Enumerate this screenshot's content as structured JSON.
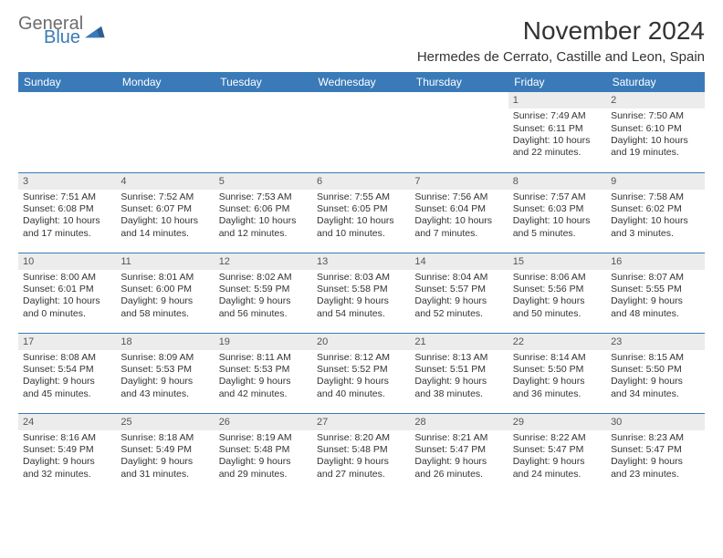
{
  "brand": {
    "general": "General",
    "blue": "Blue",
    "logo_color": "#3a7ab8"
  },
  "title": "November 2024",
  "location": "Hermedes de Cerrato, Castille and Leon, Spain",
  "header_bg": "#3a7ab8",
  "header_text": "#ffffff",
  "daynum_bg": "#ececec",
  "border_color": "#3a7ab8",
  "text_color": "#333333",
  "font_size_day": 10.5,
  "days": [
    "Sunday",
    "Monday",
    "Tuesday",
    "Wednesday",
    "Thursday",
    "Friday",
    "Saturday"
  ],
  "weeks": [
    [
      null,
      null,
      null,
      null,
      null,
      {
        "n": "1",
        "sr": "Sunrise: 7:49 AM",
        "ss": "Sunset: 6:11 PM",
        "dl": "Daylight: 10 hours and 22 minutes."
      },
      {
        "n": "2",
        "sr": "Sunrise: 7:50 AM",
        "ss": "Sunset: 6:10 PM",
        "dl": "Daylight: 10 hours and 19 minutes."
      }
    ],
    [
      {
        "n": "3",
        "sr": "Sunrise: 7:51 AM",
        "ss": "Sunset: 6:08 PM",
        "dl": "Daylight: 10 hours and 17 minutes."
      },
      {
        "n": "4",
        "sr": "Sunrise: 7:52 AM",
        "ss": "Sunset: 6:07 PM",
        "dl": "Daylight: 10 hours and 14 minutes."
      },
      {
        "n": "5",
        "sr": "Sunrise: 7:53 AM",
        "ss": "Sunset: 6:06 PM",
        "dl": "Daylight: 10 hours and 12 minutes."
      },
      {
        "n": "6",
        "sr": "Sunrise: 7:55 AM",
        "ss": "Sunset: 6:05 PM",
        "dl": "Daylight: 10 hours and 10 minutes."
      },
      {
        "n": "7",
        "sr": "Sunrise: 7:56 AM",
        "ss": "Sunset: 6:04 PM",
        "dl": "Daylight: 10 hours and 7 minutes."
      },
      {
        "n": "8",
        "sr": "Sunrise: 7:57 AM",
        "ss": "Sunset: 6:03 PM",
        "dl": "Daylight: 10 hours and 5 minutes."
      },
      {
        "n": "9",
        "sr": "Sunrise: 7:58 AM",
        "ss": "Sunset: 6:02 PM",
        "dl": "Daylight: 10 hours and 3 minutes."
      }
    ],
    [
      {
        "n": "10",
        "sr": "Sunrise: 8:00 AM",
        "ss": "Sunset: 6:01 PM",
        "dl": "Daylight: 10 hours and 0 minutes."
      },
      {
        "n": "11",
        "sr": "Sunrise: 8:01 AM",
        "ss": "Sunset: 6:00 PM",
        "dl": "Daylight: 9 hours and 58 minutes."
      },
      {
        "n": "12",
        "sr": "Sunrise: 8:02 AM",
        "ss": "Sunset: 5:59 PM",
        "dl": "Daylight: 9 hours and 56 minutes."
      },
      {
        "n": "13",
        "sr": "Sunrise: 8:03 AM",
        "ss": "Sunset: 5:58 PM",
        "dl": "Daylight: 9 hours and 54 minutes."
      },
      {
        "n": "14",
        "sr": "Sunrise: 8:04 AM",
        "ss": "Sunset: 5:57 PM",
        "dl": "Daylight: 9 hours and 52 minutes."
      },
      {
        "n": "15",
        "sr": "Sunrise: 8:06 AM",
        "ss": "Sunset: 5:56 PM",
        "dl": "Daylight: 9 hours and 50 minutes."
      },
      {
        "n": "16",
        "sr": "Sunrise: 8:07 AM",
        "ss": "Sunset: 5:55 PM",
        "dl": "Daylight: 9 hours and 48 minutes."
      }
    ],
    [
      {
        "n": "17",
        "sr": "Sunrise: 8:08 AM",
        "ss": "Sunset: 5:54 PM",
        "dl": "Daylight: 9 hours and 45 minutes."
      },
      {
        "n": "18",
        "sr": "Sunrise: 8:09 AM",
        "ss": "Sunset: 5:53 PM",
        "dl": "Daylight: 9 hours and 43 minutes."
      },
      {
        "n": "19",
        "sr": "Sunrise: 8:11 AM",
        "ss": "Sunset: 5:53 PM",
        "dl": "Daylight: 9 hours and 42 minutes."
      },
      {
        "n": "20",
        "sr": "Sunrise: 8:12 AM",
        "ss": "Sunset: 5:52 PM",
        "dl": "Daylight: 9 hours and 40 minutes."
      },
      {
        "n": "21",
        "sr": "Sunrise: 8:13 AM",
        "ss": "Sunset: 5:51 PM",
        "dl": "Daylight: 9 hours and 38 minutes."
      },
      {
        "n": "22",
        "sr": "Sunrise: 8:14 AM",
        "ss": "Sunset: 5:50 PM",
        "dl": "Daylight: 9 hours and 36 minutes."
      },
      {
        "n": "23",
        "sr": "Sunrise: 8:15 AM",
        "ss": "Sunset: 5:50 PM",
        "dl": "Daylight: 9 hours and 34 minutes."
      }
    ],
    [
      {
        "n": "24",
        "sr": "Sunrise: 8:16 AM",
        "ss": "Sunset: 5:49 PM",
        "dl": "Daylight: 9 hours and 32 minutes."
      },
      {
        "n": "25",
        "sr": "Sunrise: 8:18 AM",
        "ss": "Sunset: 5:49 PM",
        "dl": "Daylight: 9 hours and 31 minutes."
      },
      {
        "n": "26",
        "sr": "Sunrise: 8:19 AM",
        "ss": "Sunset: 5:48 PM",
        "dl": "Daylight: 9 hours and 29 minutes."
      },
      {
        "n": "27",
        "sr": "Sunrise: 8:20 AM",
        "ss": "Sunset: 5:48 PM",
        "dl": "Daylight: 9 hours and 27 minutes."
      },
      {
        "n": "28",
        "sr": "Sunrise: 8:21 AM",
        "ss": "Sunset: 5:47 PM",
        "dl": "Daylight: 9 hours and 26 minutes."
      },
      {
        "n": "29",
        "sr": "Sunrise: 8:22 AM",
        "ss": "Sunset: 5:47 PM",
        "dl": "Daylight: 9 hours and 24 minutes."
      },
      {
        "n": "30",
        "sr": "Sunrise: 8:23 AM",
        "ss": "Sunset: 5:47 PM",
        "dl": "Daylight: 9 hours and 23 minutes."
      }
    ]
  ]
}
